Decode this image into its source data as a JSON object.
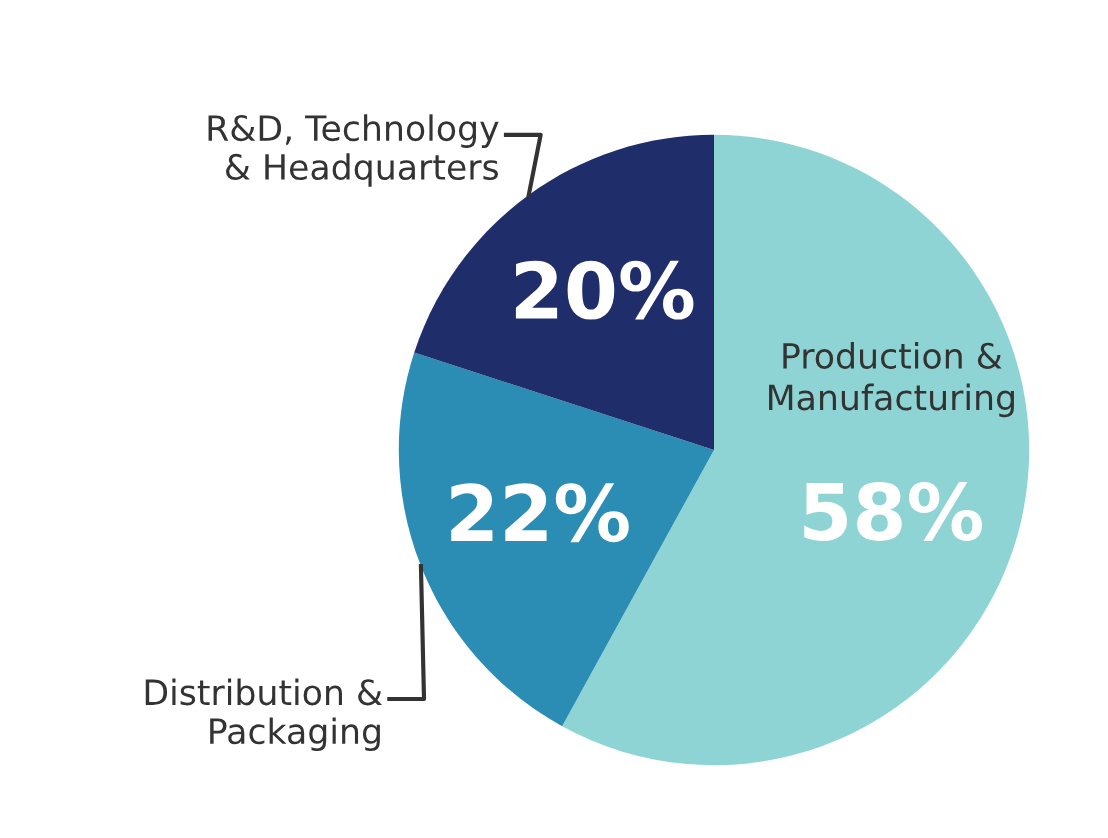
{
  "chart_data": {
    "type": "pie",
    "categories": [
      "Production & Manufacturing",
      "Distribution & Packaging",
      "R&D, Technology & Headquarters"
    ],
    "values": [
      58,
      22,
      20
    ],
    "colors": [
      "#8ed4d4",
      "#2b8db3",
      "#1f2e6a"
    ],
    "value_labels": [
      "58%",
      "22%",
      "20%"
    ],
    "legend": false
  }
}
